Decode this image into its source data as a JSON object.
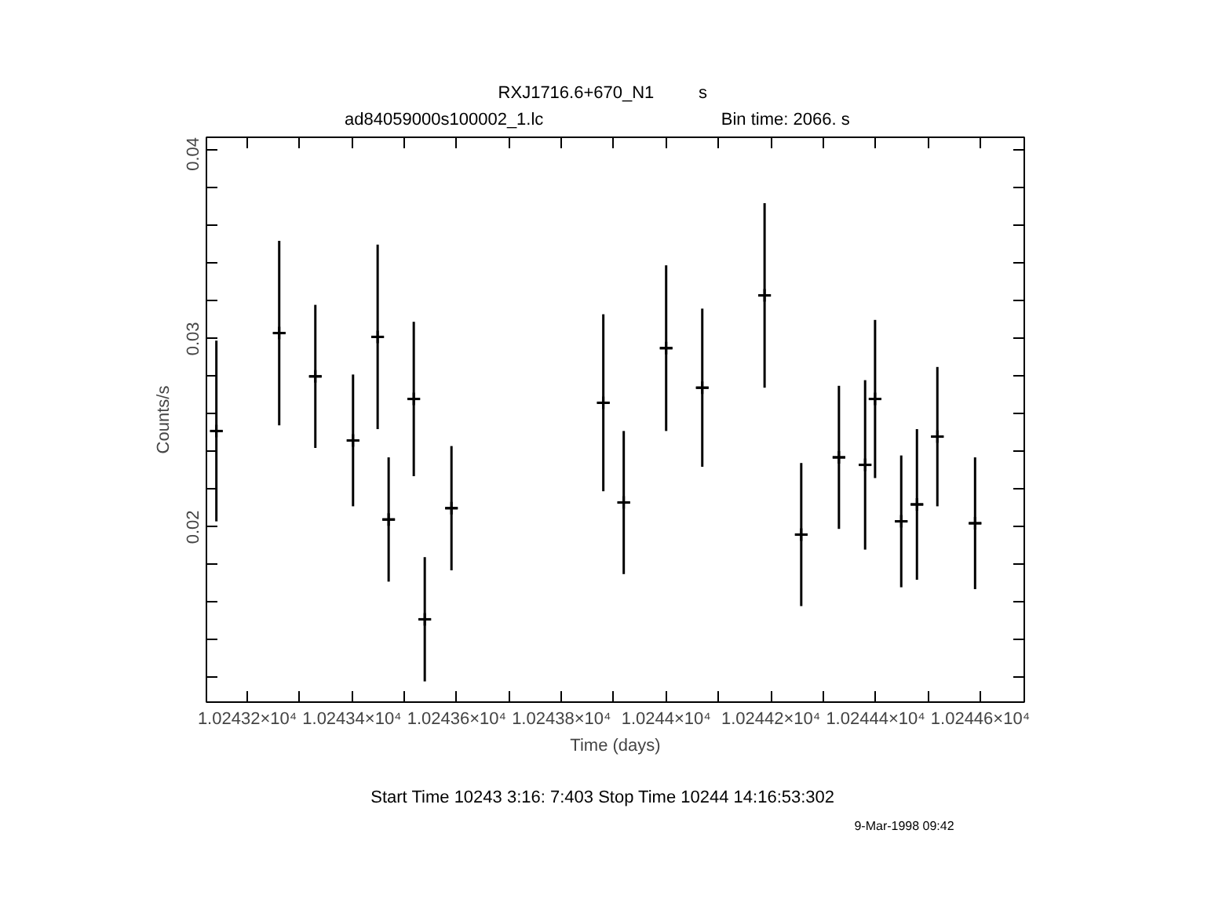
{
  "chart_data": {
    "type": "scatter",
    "title": "RXJ1716.6+670_N1",
    "subtitle": "ad84059000s100002_1.lc",
    "xlabel": "Time (days)",
    "ylabel": "Counts/s",
    "annotations": [
      "s",
      "Bin time:    2066.      s",
      "Start Time 10243  3:16: 7:403     Stop Time 10244 14:16:53:302",
      "9-Mar-1998 09:42"
    ],
    "series": [
      {
        "color": "#000000",
        "x": [
          10243.141,
          10243.261,
          10243.33,
          10243.402,
          10243.449,
          10243.47,
          10243.518,
          10243.539,
          10243.59,
          10243.88,
          10243.919,
          10244.0,
          10244.069,
          10244.188,
          10244.258,
          10244.33,
          10244.38,
          10244.399,
          10244.449,
          10244.479,
          10244.518,
          10244.59
        ],
        "values": [
          0.0251,
          0.0303,
          0.028,
          0.0246,
          0.0301,
          0.0204,
          0.0268,
          0.0151,
          0.021,
          0.0266,
          0.0213,
          0.0295,
          0.0274,
          0.0323,
          0.0196,
          0.0237,
          0.0233,
          0.0268,
          0.0203,
          0.0212,
          0.0248,
          0.0202
        ],
        "errors": [
          0.0048,
          0.0049,
          0.0038,
          0.0035,
          0.0049,
          0.0033,
          0.0041,
          0.0033,
          0.0033,
          0.0047,
          0.0038,
          0.0044,
          0.0042,
          0.0049,
          0.0038,
          0.0038,
          0.0045,
          0.0042,
          0.0035,
          0.004,
          0.0037,
          0.0035
        ],
        "xerrors": [
          0.012,
          0.012,
          0.012,
          0.012,
          0.012,
          0.012,
          0.012,
          0.012,
          0.012,
          0.012,
          0.012,
          0.012,
          0.012,
          0.012,
          0.012,
          0.012,
          0.012,
          0.012,
          0.012,
          0.012,
          0.012,
          0.012
        ]
      }
    ],
    "marker": "cross",
    "grid": false,
    "xlim": [
      10243.122,
      10244.684
    ],
    "ylim": [
      0.0107,
      0.0407
    ],
    "xticks": [
      {
        "value": 10243.2,
        "label": "1.02432×10⁴"
      },
      {
        "value": 10243.3,
        "label": null
      },
      {
        "value": 10243.4,
        "label": "1.02434×10⁴"
      },
      {
        "value": 10243.5,
        "label": null
      },
      {
        "value": 10243.6,
        "label": "1.02436×10⁴"
      },
      {
        "value": 10243.7,
        "label": null
      },
      {
        "value": 10243.8,
        "label": "1.02438×10⁴"
      },
      {
        "value": 10243.9,
        "label": null
      },
      {
        "value": 10244.0,
        "label": "1.0244×10⁴"
      },
      {
        "value": 10244.1,
        "label": null
      },
      {
        "value": 10244.2,
        "label": "1.02442×10⁴"
      },
      {
        "value": 10244.3,
        "label": null
      },
      {
        "value": 10244.4,
        "label": "1.02444×10⁴"
      },
      {
        "value": 10244.5,
        "label": null
      },
      {
        "value": 10244.6,
        "label": "1.02446×10⁴"
      }
    ],
    "yticks": [
      {
        "value": 0.012,
        "label": null
      },
      {
        "value": 0.014,
        "label": null
      },
      {
        "value": 0.016,
        "label": null
      },
      {
        "value": 0.018,
        "label": null
      },
      0.02,
      {
        "value": 0.022,
        "label": null
      },
      {
        "value": 0.024,
        "label": null
      },
      {
        "value": 0.026,
        "label": null
      },
      {
        "value": 0.028,
        "label": null
      },
      0.03,
      {
        "value": 0.032,
        "label": null
      },
      {
        "value": 0.034,
        "label": null
      },
      {
        "value": 0.036,
        "label": null
      },
      {
        "value": 0.038,
        "label": null
      },
      0.04
    ]
  }
}
